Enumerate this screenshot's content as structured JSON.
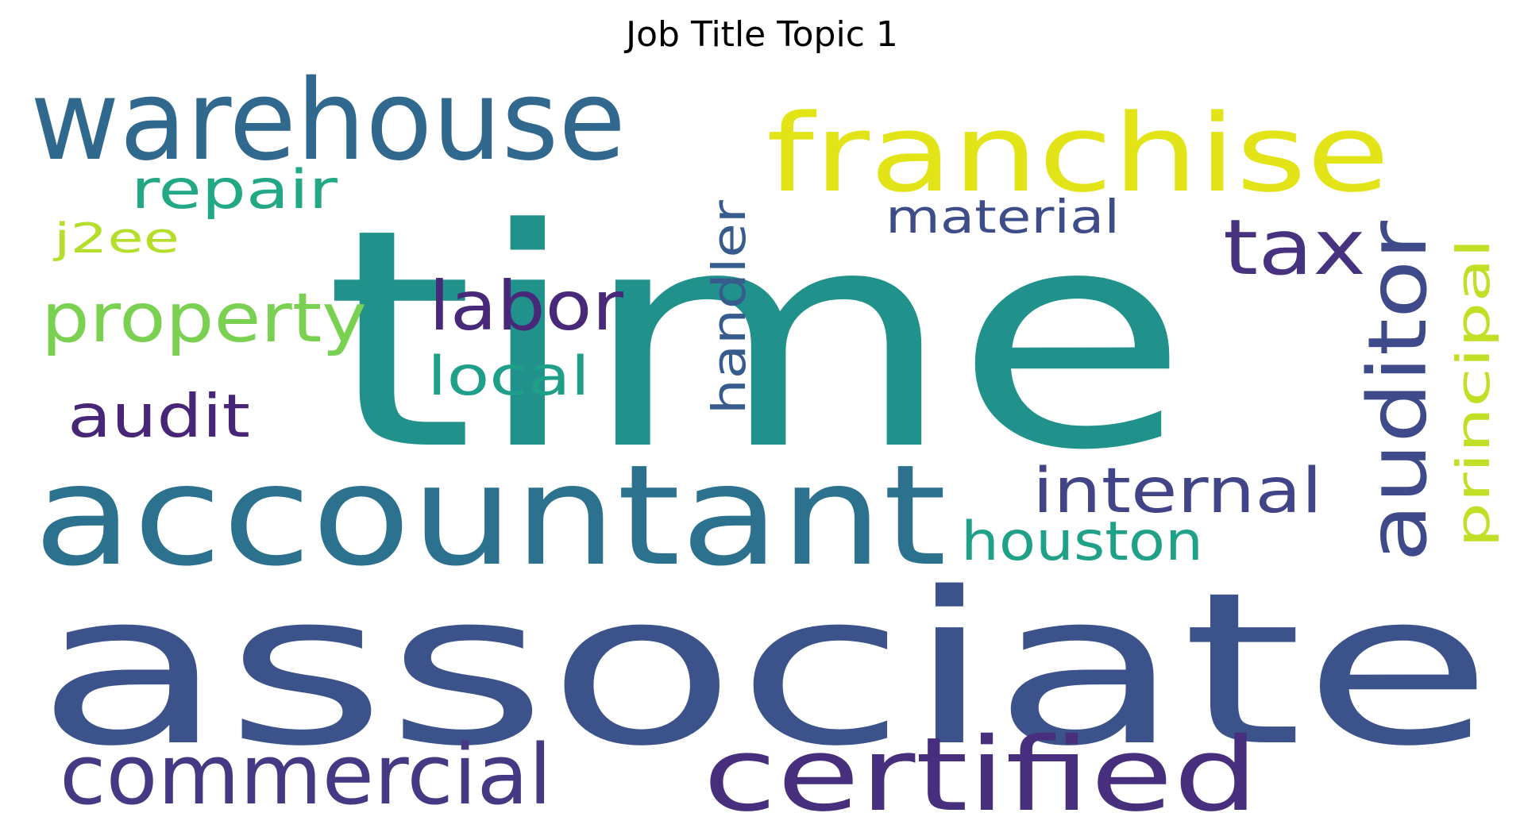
{
  "title": "Job Title Topic 1",
  "words": [
    {
      "text": "associate",
      "color": "#3b528b"
    },
    {
      "text": "time",
      "color": "#21918c"
    },
    {
      "text": "accountant",
      "color": "#2c728e"
    },
    {
      "text": "warehouse",
      "color": "#31688e"
    },
    {
      "text": "franchise",
      "color": "#e2e418"
    },
    {
      "text": "certified",
      "color": "#472f7d"
    },
    {
      "text": "commercial",
      "color": "#443983"
    },
    {
      "text": "auditor",
      "color": "#3e4a89"
    },
    {
      "text": "tax",
      "color": "#46327e"
    },
    {
      "text": "property",
      "color": "#7ad151"
    },
    {
      "text": "labor",
      "color": "#482878"
    },
    {
      "text": "internal",
      "color": "#414487"
    },
    {
      "text": "audit",
      "color": "#482677"
    },
    {
      "text": "repair",
      "color": "#22a884"
    },
    {
      "text": "houston",
      "color": "#1fa187"
    },
    {
      "text": "local",
      "color": "#1f9e89"
    },
    {
      "text": "handler",
      "color": "#375b8d"
    },
    {
      "text": "material",
      "color": "#3e4c8a"
    },
    {
      "text": "principal",
      "color": "#c0df25"
    },
    {
      "text": "j2ee",
      "color": "#b5de2b"
    }
  ]
}
